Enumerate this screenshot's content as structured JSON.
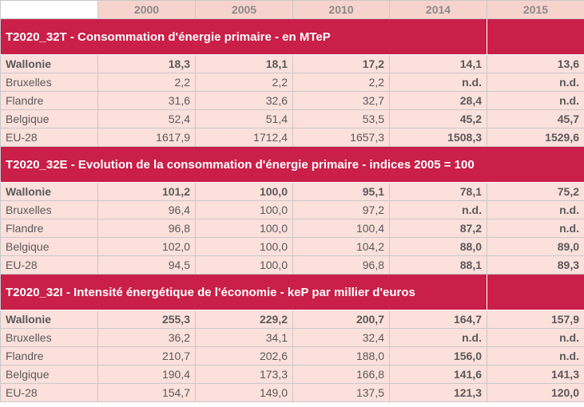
{
  "years": [
    "2000",
    "2005",
    "2010",
    "2014",
    "2015"
  ],
  "sections": [
    {
      "title": "T2020_32T - Consommation d'énergie primaire - en MTeP",
      "rows": [
        {
          "region": "Wallonie",
          "values": [
            "18,3",
            "18,1",
            "17,2",
            "14,1",
            "13,6"
          ]
        },
        {
          "region": "Bruxelles",
          "values": [
            "2,2",
            "2,2",
            "2,2",
            "n.d.",
            "n.d."
          ]
        },
        {
          "region": "Flandre",
          "values": [
            "31,6",
            "32,6",
            "32,7",
            "28,4",
            "n.d."
          ]
        },
        {
          "region": "Belgique",
          "values": [
            "52,4",
            "51,4",
            "53,5",
            "45,2",
            "45,7"
          ]
        },
        {
          "region": "EU-28",
          "values": [
            "1617,9",
            "1712,4",
            "1657,3",
            "1508,3",
            "1529,6"
          ]
        }
      ]
    },
    {
      "title": "T2020_32E - Evolution de la consommation d'énergie primaire - indices 2005 = 100",
      "rows": [
        {
          "region": "Wallonie",
          "values": [
            "101,2",
            "100,0",
            "95,1",
            "78,1",
            "75,2"
          ]
        },
        {
          "region": "Bruxelles",
          "values": [
            "96,4",
            "100,0",
            "97,2",
            "n.d.",
            "n.d."
          ]
        },
        {
          "region": "Flandre",
          "values": [
            "96,8",
            "100,0",
            "100,4",
            "87,2",
            "n.d."
          ]
        },
        {
          "region": "Belgique",
          "values": [
            "102,0",
            "100,0",
            "104,2",
            "88,0",
            "89,0"
          ]
        },
        {
          "region": "EU-28",
          "values": [
            "94,5",
            "100,0",
            "96,8",
            "88,1",
            "89,3"
          ]
        }
      ]
    },
    {
      "title": "T2020_32I - Intensité énergétique de l'économie - keP par millier d'euros",
      "rows": [
        {
          "region": "Wallonie",
          "values": [
            "255,3",
            "229,2",
            "200,7",
            "164,7",
            "157,9"
          ]
        },
        {
          "region": "Bruxelles",
          "values": [
            "36,2",
            "34,1",
            "32,4",
            "n.d.",
            "n.d."
          ]
        },
        {
          "region": "Flandre",
          "values": [
            "210,7",
            "202,6",
            "188,0",
            "156,0",
            "n.d."
          ]
        },
        {
          "region": "Belgique",
          "values": [
            "190,4",
            "173,3",
            "166,8",
            "141,6",
            "141,3"
          ]
        },
        {
          "region": "EU-28",
          "values": [
            "154,7",
            "149,0",
            "137,5",
            "121,3",
            "120,0"
          ]
        }
      ]
    }
  ],
  "colors": {
    "section_band": "#c91f48",
    "row_fill": "#fbe0dc",
    "header_fill": "#f7d3cd"
  }
}
